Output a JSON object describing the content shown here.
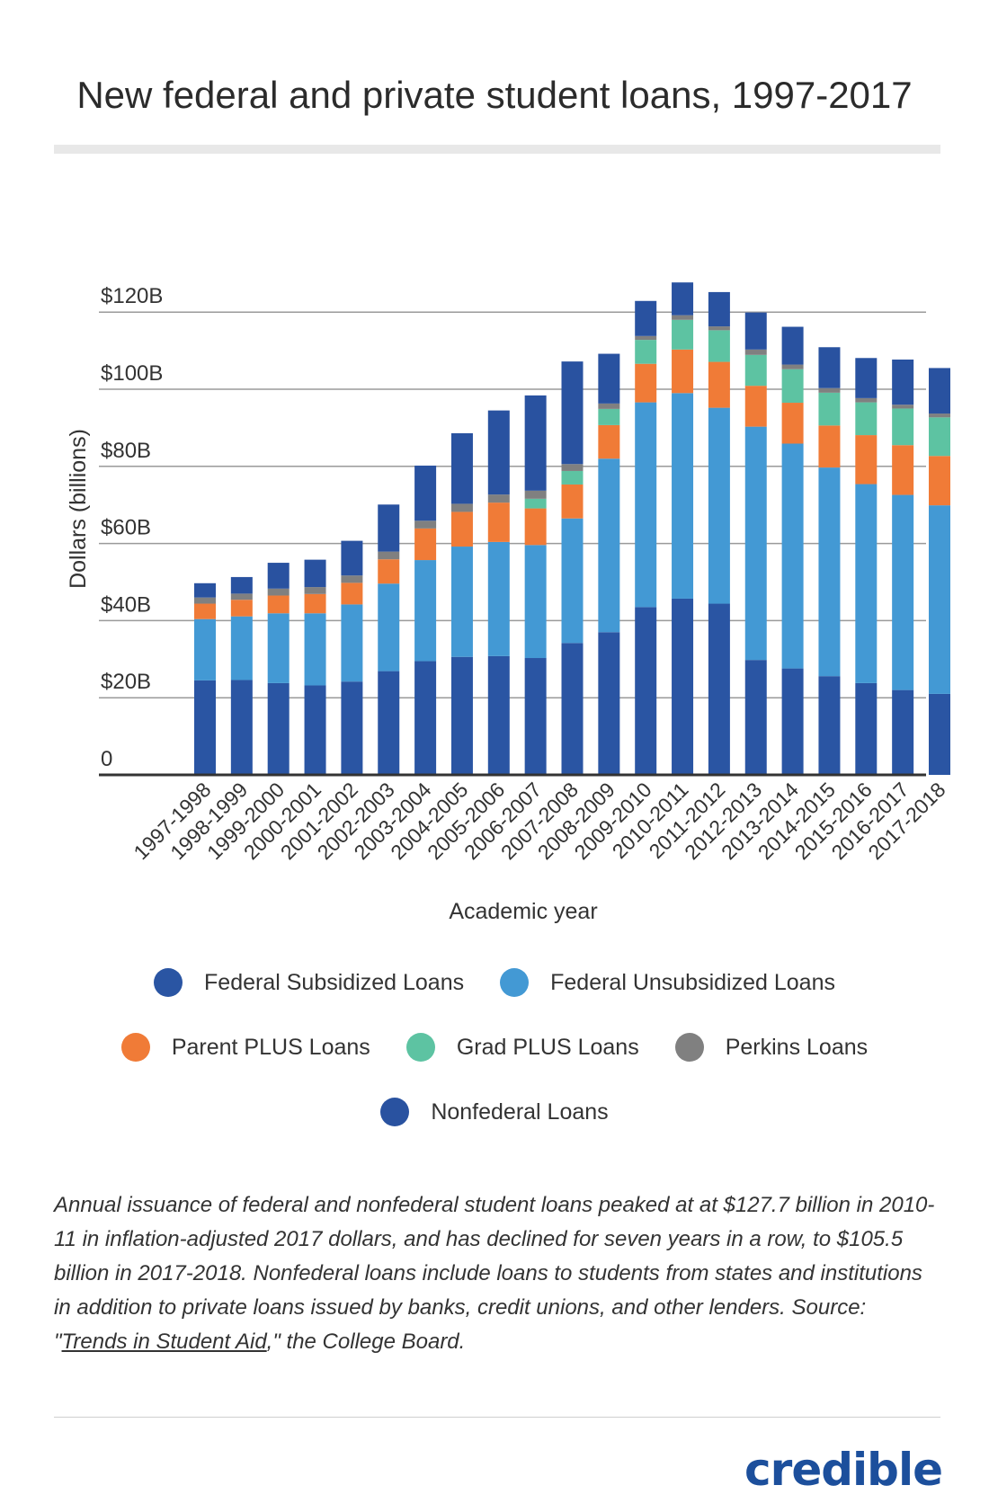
{
  "title": "New federal and private student loans, 1997-2017",
  "chart_data": {
    "type": "bar",
    "stacked": true,
    "ylabel": "Dollars (billions)",
    "xlabel": "Academic year",
    "ylim": [
      0,
      120
    ],
    "yticks": [
      {
        "value": 0,
        "label": "0"
      },
      {
        "value": 20,
        "label": "$20B"
      },
      {
        "value": 40,
        "label": "$40B"
      },
      {
        "value": 60,
        "label": "$60B"
      },
      {
        "value": 80,
        "label": "$80B"
      },
      {
        "value": 100,
        "label": "$100B"
      },
      {
        "value": 120,
        "label": "$120B"
      }
    ],
    "categories": [
      "1997-1998",
      "1998-1999",
      "1999-2000",
      "2000-2001",
      "2001-2002",
      "2002-2003",
      "2003-2004",
      "2004-2005",
      "2005-2006",
      "2006-2007",
      "2007-2008",
      "2008-2009",
      "2009-2010",
      "2010-2011",
      "2011-2012",
      "2012-2013",
      "2013-2014",
      "2014-2015",
      "2015-2016",
      "2016-2017",
      "2017-2018"
    ],
    "series": [
      {
        "name": "Federal Subsidized Loans",
        "color": "#2a55a3",
        "values": [
          24.5,
          24.6,
          23.8,
          23.2,
          24.2,
          26.9,
          29.5,
          30.6,
          30.8,
          30.3,
          34.2,
          37.0,
          43.5,
          45.7,
          44.4,
          29.8,
          27.6,
          25.6,
          23.8,
          22.0,
          21.0
        ]
      },
      {
        "name": "Federal Unsubsidized Loans",
        "color": "#4399d4",
        "values": [
          15.9,
          16.5,
          18.1,
          18.7,
          20.0,
          22.7,
          26.2,
          28.6,
          29.6,
          29.3,
          32.3,
          45.0,
          53.1,
          53.3,
          50.8,
          60.5,
          58.3,
          54.1,
          51.6,
          50.6,
          48.9
        ]
      },
      {
        "name": "Parent PLUS Loans",
        "color": "#f07b37",
        "values": [
          4.0,
          4.3,
          4.6,
          5.0,
          5.6,
          6.3,
          8.2,
          9.0,
          10.2,
          9.5,
          8.8,
          8.7,
          10.0,
          11.3,
          11.9,
          10.6,
          10.6,
          10.9,
          12.7,
          12.9,
          12.8
        ]
      },
      {
        "name": "Grad PLUS Loans",
        "color": "#5dc3a2",
        "values": [
          0,
          0,
          0,
          0,
          0,
          0,
          0,
          0,
          0,
          2.5,
          3.5,
          4.2,
          6.2,
          7.7,
          8.2,
          8.0,
          8.7,
          8.5,
          8.5,
          9.5,
          10.0
        ]
      },
      {
        "name": "Perkins Loans",
        "color": "#808080",
        "values": [
          1.6,
          1.6,
          1.8,
          1.8,
          1.9,
          2.0,
          2.0,
          2.1,
          2.1,
          2.1,
          1.8,
          1.4,
          1.0,
          1.2,
          1.0,
          1.4,
          1.2,
          1.2,
          1.1,
          1.0,
          1.0
        ]
      },
      {
        "name": "Nonfederal Loans",
        "color": "#2952a0",
        "values": [
          3.7,
          4.3,
          6.7,
          7.1,
          9.0,
          12.2,
          14.3,
          18.3,
          21.8,
          24.7,
          26.6,
          12.9,
          9.1,
          8.5,
          8.9,
          9.6,
          9.8,
          10.6,
          10.4,
          11.7,
          11.8
        ]
      }
    ]
  },
  "legend": {
    "rows": [
      [
        {
          "label": "Federal Subsidized Loans",
          "color": "#2a55a3"
        },
        {
          "label": "Federal Unsubsidized Loans",
          "color": "#4399d4"
        }
      ],
      [
        {
          "label": "Parent PLUS Loans",
          "color": "#f07b37"
        },
        {
          "label": "Grad PLUS Loans",
          "color": "#5dc3a2"
        },
        {
          "label": "Perkins Loans",
          "color": "#808080"
        }
      ],
      [
        {
          "label": "Nonfederal Loans",
          "color": "#2952a0"
        }
      ]
    ]
  },
  "caption": {
    "before_link": "Annual issuance of federal and nonfederal student loans peaked at at $127.7 billion in 2010-11 in inflation-adjusted 2017 dollars, and has declined for seven years in a row, to $105.5 billion in 2017-2018. Nonfederal loans include loans to students from states and institutions in addition to private loans issued by banks, credit unions, and other lenders. Source: \"",
    "link": "Trends in Student Aid",
    "after_link": ",\" the College Board."
  },
  "logo": "credible"
}
